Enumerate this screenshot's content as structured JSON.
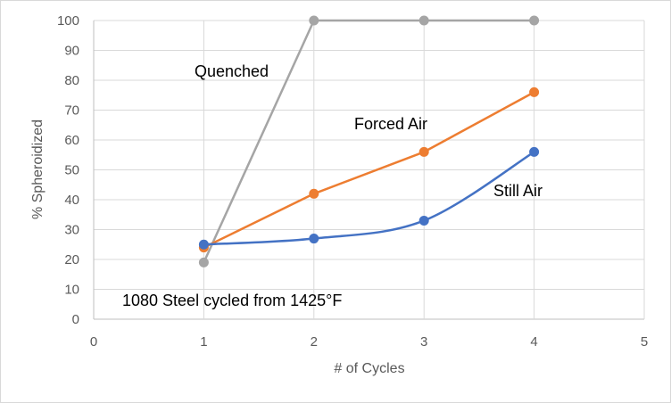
{
  "chart_data": {
    "type": "line",
    "title": "",
    "xlabel": "# of Cycles",
    "ylabel": "% Spheroidized",
    "xlim": [
      0,
      5
    ],
    "ylim": [
      0,
      100
    ],
    "x_ticks": [
      0,
      1,
      2,
      3,
      4,
      5
    ],
    "y_ticks": [
      0,
      10,
      20,
      30,
      40,
      50,
      60,
      70,
      80,
      90,
      100
    ],
    "grid": true,
    "legend": "none (series labeled inline)",
    "annotation": "1080 Steel cycled from 1425°F",
    "series": [
      {
        "name": "Quenched",
        "color": "#A5A5A5",
        "smooth": false,
        "x": [
          1,
          2,
          3,
          4
        ],
        "y": [
          19,
          100,
          100,
          100
        ]
      },
      {
        "name": "Forced Air",
        "color": "#ED7D31",
        "smooth": false,
        "x": [
          1,
          2,
          3,
          4
        ],
        "y": [
          24,
          42,
          56,
          76
        ]
      },
      {
        "name": "Still Air",
        "color": "#4472C4",
        "smooth": true,
        "x": [
          1,
          2,
          3,
          4
        ],
        "y": [
          25,
          27,
          33,
          56
        ]
      }
    ]
  }
}
